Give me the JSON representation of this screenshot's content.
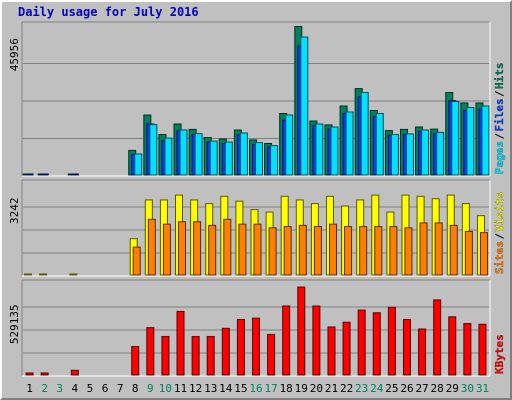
{
  "chart_data": {
    "title": "Daily usage for July 2016",
    "type": "bar",
    "categories": [
      "1",
      "2",
      "3",
      "4",
      "5",
      "6",
      "7",
      "8",
      "9",
      "10",
      "11",
      "12",
      "13",
      "14",
      "15",
      "16",
      "17",
      "18",
      "19",
      "20",
      "21",
      "22",
      "23",
      "24",
      "25",
      "26",
      "27",
      "28",
      "29",
      "30",
      "31"
    ],
    "weekend_days": [
      "2",
      "3",
      "9",
      "10",
      "16",
      "17",
      "23",
      "24",
      "30",
      "31"
    ],
    "panels": [
      {
        "id": "pages-files-hits",
        "ytick": "45956",
        "ylim": [
          0,
          50000
        ],
        "legend": [
          {
            "label": "Pages",
            "color": "#00e0ff"
          },
          {
            "label": "Files",
            "color": "#0040ff"
          },
          {
            "label": "Hits",
            "color": "#00805c"
          }
        ],
        "series": [
          {
            "name": "Hits",
            "color": "#00805c",
            "values": [
              300,
              300,
              0,
              300,
              0,
              0,
              0,
              8200,
              20000,
              13500,
              17000,
              15200,
              12500,
              12000,
              15000,
              11700,
              10500,
              20500,
              49500,
              18000,
              16700,
              23000,
              28800,
              21500,
              14800,
              15200,
              16000,
              15300,
              27500,
              24000,
              24000
            ]
          },
          {
            "name": "Files",
            "color": "#0040ff",
            "values": [
              200,
              200,
              0,
              200,
              0,
              0,
              0,
              6800,
              17000,
              11500,
              14800,
              13500,
              11000,
              10500,
              13500,
              10200,
              9300,
              18300,
              43000,
              16500,
              15300,
              20500,
              26000,
              19500,
              13200,
              13500,
              14500,
              13800,
              24800,
              21500,
              22000
            ]
          },
          {
            "name": "Pages",
            "color": "#00e0ff",
            "values": [
              0,
              0,
              0,
              0,
              0,
              0,
              0,
              7000,
              16800,
              12300,
              15000,
              13800,
              11300,
              11000,
              14000,
              10800,
              9800,
              20000,
              46000,
              17000,
              16000,
              21000,
              27500,
              20500,
              13500,
              13700,
              15000,
              14200,
              24500,
              22500,
              23000
            ]
          }
        ]
      },
      {
        "id": "sites-visits",
        "ytick": "3242",
        "ylim": [
          0,
          3800
        ],
        "legend": [
          {
            "label": "Sites",
            "color": "#ff8000"
          },
          {
            "label": "Visits",
            "color": "#ffff00"
          }
        ],
        "series": [
          {
            "name": "Visits",
            "color": "#ffff00",
            "values": [
              20,
              20,
              0,
              20,
              0,
              0,
              0,
              1500,
              3100,
              3100,
              3300,
              3100,
              2950,
              3250,
              3050,
              2700,
              2600,
              3250,
              3100,
              2950,
              3250,
              2850,
              3100,
              3300,
              2600,
              3300,
              3250,
              3150,
              3300,
              2950,
              2450
            ]
          },
          {
            "name": "Sites",
            "color": "#ff8000",
            "values": [
              0,
              0,
              0,
              0,
              0,
              0,
              0,
              1150,
              2300,
              2100,
              2200,
              2200,
              2050,
              2300,
              2100,
              2100,
              1950,
              2000,
              2050,
              2000,
              2100,
              2000,
              2000,
              2000,
              2000,
              1950,
              2150,
              2150,
              2050,
              1800,
              1750
            ]
          }
        ]
      },
      {
        "id": "kbytes",
        "ytick": "529135",
        "ylim": [
          0,
          680000
        ],
        "legend": [
          {
            "label": "KBytes",
            "color": "#ff0000"
          }
        ],
        "series": [
          {
            "name": "KBytes",
            "color": "#ff0000",
            "values": [
              15000,
              15000,
              0,
              35000,
              0,
              0,
              0,
              210000,
              350000,
              285000,
              470000,
              285000,
              285000,
              345000,
              410000,
              420000,
              300000,
              510000,
              650000,
              510000,
              355000,
              390000,
              480000,
              460000,
              500000,
              410000,
              340000,
              555000,
              430000,
              380000,
              375000
            ]
          }
        ]
      }
    ]
  }
}
